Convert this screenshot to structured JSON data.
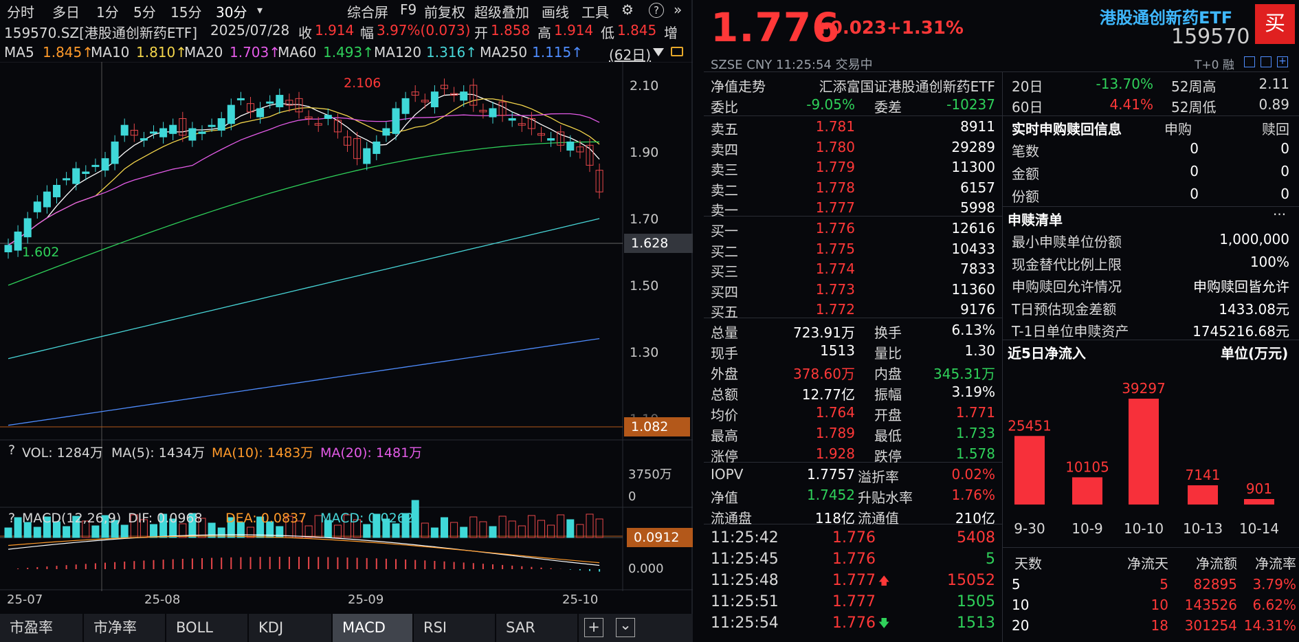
{
  "toolbar": {
    "left_tabs": [
      "分时",
      "多日",
      "1分",
      "5分",
      "15分",
      "30分"
    ],
    "dropdown_icon": "▾",
    "right_items": [
      "综合屏",
      "F9",
      "前复权",
      "超级叠加",
      "画线",
      "工具"
    ],
    "gear_icon": "⚙",
    "help_icon": "?",
    "collapse_icon": "»"
  },
  "quote_line": {
    "code_name": "159570.SZ[港股通创新药ETF]",
    "date": "2025/07/28",
    "close_label": "收",
    "close": "1.914",
    "amp_label": "幅",
    "amp": "3.97%(0.073)",
    "open_label": "开",
    "open": "1.858",
    "high_label": "高",
    "high": "1.914",
    "low_label": "低",
    "low": "1.845",
    "extra": "增"
  },
  "ma_line": {
    "ma5": "MA5 ",
    "ma5_v": "1.845↑",
    "ma10": "MA10 ",
    "ma10_v": "1.810↑",
    "ma20": "MA20 ",
    "ma20_v": "1.703↑",
    "ma60": "MA60 ",
    "ma60_v": "1.493↑",
    "ma120": "MA120 ",
    "ma120_v": "1.316↑",
    "ma250": "MA250 ",
    "ma250_v": "1.115↑",
    "period": "(62日)"
  },
  "price_axis": [
    "2.10",
    "1.90",
    "1.70",
    "1.50",
    "1.30",
    "1.10"
  ],
  "price_marks": {
    "high_mark": "2.106",
    "low_mark": "1.602",
    "cursor_price": "1.628",
    "ma250_box": "1.082"
  },
  "vol_line": {
    "q": "?",
    "vol": "VOL: 1284万",
    "ma5": "MA(5): 1434万",
    "ma10": "MA(10): 1483万",
    "ma20": "MA(20): 1481万"
  },
  "vol_axis": [
    "3750万",
    "0"
  ],
  "macd_line": {
    "q": "?",
    "title": "MACD(12,26,9)",
    "dif": "DIF: 0.0968",
    "dea": "DEA: 0.0837",
    "macd": "MACD: 0.0262"
  },
  "macd_axis": {
    "zero": "0.000",
    "box": "0.0912"
  },
  "date_axis": [
    "25-07",
    "25-08",
    "25-09",
    "25-10"
  ],
  "bottom_tabs": [
    "市盈率",
    "市净率",
    "BOLL",
    "KDJ",
    "MACD",
    "RSI",
    "SAR"
  ],
  "bottom_icons": {
    "add": "+",
    "menu": "⌄"
  },
  "header": {
    "price": "1.776",
    "change": "+0.023",
    "change_pct": "+1.31%",
    "name": "港股通创新药ETF",
    "code": "159570",
    "buy_button": "买",
    "exchange_line": "SZSE   CNY   11:25:54   交易中",
    "t0": "T+0 融"
  },
  "orderbook": {
    "nav_trend": "净值走势",
    "fund_name": "汇添富国证港股通创新药ETF",
    "wb_label": "委比",
    "wb": "-9.05%",
    "wc_label": "委差",
    "wc": "-10237",
    "sells": [
      {
        "label": "卖五",
        "price": "1.781",
        "vol": "8911"
      },
      {
        "label": "卖四",
        "price": "1.780",
        "vol": "29289"
      },
      {
        "label": "卖三",
        "price": "1.779",
        "vol": "11300"
      },
      {
        "label": "卖二",
        "price": "1.778",
        "vol": "6157"
      },
      {
        "label": "卖一",
        "price": "1.777",
        "vol": "5998"
      }
    ],
    "buys": [
      {
        "label": "买一",
        "price": "1.776",
        "vol": "12616"
      },
      {
        "label": "买二",
        "price": "1.775",
        "vol": "10433"
      },
      {
        "label": "买三",
        "price": "1.774",
        "vol": "7833"
      },
      {
        "label": "买四",
        "price": "1.773",
        "vol": "11360"
      },
      {
        "label": "买五",
        "price": "1.772",
        "vol": "9176"
      }
    ]
  },
  "stats": [
    {
      "l1": "总量",
      "v1": "723.91万",
      "c1": "wht",
      "l2": "换手",
      "v2": "6.13%",
      "c2": "wht"
    },
    {
      "l1": "现手",
      "v1": "1513",
      "c1": "wht",
      "l2": "量比",
      "v2": "1.30",
      "c2": "wht"
    },
    {
      "l1": "外盘",
      "v1": "378.60万",
      "c1": "red",
      "l2": "内盘",
      "v2": "345.31万",
      "c2": "grn"
    },
    {
      "l1": "总额",
      "v1": "12.77亿",
      "c1": "wht",
      "l2": "振幅",
      "v2": "3.19%",
      "c2": "wht"
    },
    {
      "l1": "均价",
      "v1": "1.764",
      "c1": "red",
      "l2": "开盘",
      "v2": "1.771",
      "c2": "red"
    },
    {
      "l1": "最高",
      "v1": "1.789",
      "c1": "red",
      "l2": "最低",
      "v2": "1.733",
      "c2": "grn"
    },
    {
      "l1": "涨停",
      "v1": "1.928",
      "c1": "red",
      "l2": "跌停",
      "v2": "1.578",
      "c2": "grn"
    }
  ],
  "iopv": [
    {
      "l1": "IOPV",
      "v1": "1.7757",
      "c1": "wht",
      "l2": "溢折率",
      "v2": "0.02%",
      "c2": "red"
    },
    {
      "l1": "净值",
      "v1": "1.7452",
      "c1": "grn",
      "l2": "升贴水率",
      "v2": "1.76%",
      "c2": "red"
    },
    {
      "l1": "流通盘",
      "v1": "118亿",
      "c1": "wht",
      "l2": "流通值",
      "v2": "210亿",
      "c2": "wht"
    }
  ],
  "ticks": [
    {
      "time": "11:25:42",
      "price": "1.776",
      "arrow": "",
      "vol": "5408",
      "vc": "red"
    },
    {
      "time": "11:25:45",
      "price": "1.776",
      "arrow": "",
      "vol": "5",
      "vc": "grn"
    },
    {
      "time": "11:25:48",
      "price": "1.777",
      "arrow": "🡅",
      "vol": "15052",
      "vc": "red"
    },
    {
      "time": "11:25:51",
      "price": "1.777",
      "arrow": "",
      "vol": "1505",
      "vc": "grn"
    },
    {
      "time": "11:25:54",
      "price": "1.776",
      "arrow": "🡇",
      "vol": "1513",
      "vc": "grn"
    }
  ],
  "perf": {
    "d20_label": "20日",
    "d20": "-13.70%",
    "w52h_label": "52周高",
    "w52h": "2.11",
    "d60_label": "60日",
    "d60": "4.41%",
    "w52l_label": "52周低",
    "w52l": "0.89"
  },
  "subscribe": {
    "title": "实时申购赎回信息",
    "col1": "申购",
    "col2": "赎回",
    "rows": [
      {
        "label": "笔数",
        "a": "0",
        "b": "0"
      },
      {
        "label": "金额",
        "a": "0",
        "b": "0"
      },
      {
        "label": "份额",
        "a": "0",
        "b": "0"
      }
    ]
  },
  "creation_list": {
    "title": "申赎清单",
    "more": "···",
    "rows": [
      {
        "label": "最小申赎单位份额",
        "value": "1,000,000"
      },
      {
        "label": "现金替代比例上限",
        "value": "100%"
      },
      {
        "label": "申购赎回允许情况",
        "value": "申购赎回皆允许"
      },
      {
        "label": "T日预估现金差额",
        "value": "1433.08元"
      },
      {
        "label": "T-1日单位申赎资产",
        "value": "1745216.68元"
      }
    ]
  },
  "inflow": {
    "title": "近5日净流入",
    "unit": "单位(万元)",
    "bars": [
      {
        "date": "9-30",
        "value": "25451"
      },
      {
        "date": "10-9",
        "value": "10105"
      },
      {
        "date": "10-10",
        "value": "39297"
      },
      {
        "date": "10-13",
        "value": "7141"
      },
      {
        "date": "10-14",
        "value": "901"
      }
    ],
    "table_header": [
      "天数",
      "净流天",
      "净流额",
      "净流率"
    ],
    "table_rows": [
      [
        "5",
        "5",
        "82895",
        "3.79%"
      ],
      [
        "10",
        "10",
        "143526",
        "6.62%"
      ],
      [
        "20",
        "18",
        "301254",
        "14.31%"
      ]
    ]
  },
  "chart_data": {
    "type": "bar",
    "title": "近5日净流入",
    "ylabel": "单位(万元)",
    "categories": [
      "9-30",
      "10-9",
      "10-10",
      "10-13",
      "10-14"
    ],
    "values": [
      25451,
      10105,
      39297,
      7141,
      901
    ]
  }
}
